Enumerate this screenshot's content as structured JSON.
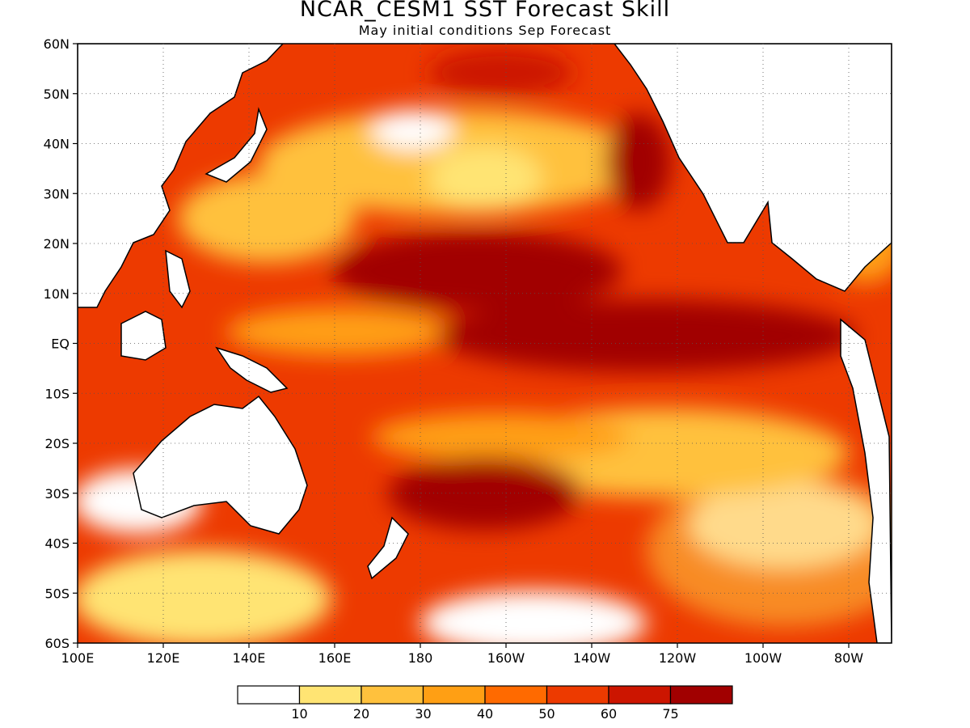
{
  "header": {
    "title": "NCAR_CESM1  SST  Forecast  Skill",
    "subtitle": "May  initial  conditions   Sep  Forecast"
  },
  "map": {
    "lat_labels": [
      "60N",
      "50N",
      "40N",
      "30N",
      "20N",
      "10N",
      "EQ",
      "10S",
      "20S",
      "30S",
      "40S",
      "50S",
      "60S"
    ],
    "lon_labels": [
      "100E",
      "120E",
      "140E",
      "160E",
      "180",
      "160W",
      "140W",
      "120W",
      "100W",
      "80W"
    ]
  },
  "colorbar": {
    "colors": [
      "#ffffff",
      "#ffe473",
      "#ffc13d",
      "#ff9f14",
      "#ff6a00",
      "#ed3a00",
      "#cc1500",
      "#a10000"
    ],
    "labels": [
      "10",
      "20",
      "30",
      "40",
      "50",
      "60",
      "75"
    ]
  }
}
